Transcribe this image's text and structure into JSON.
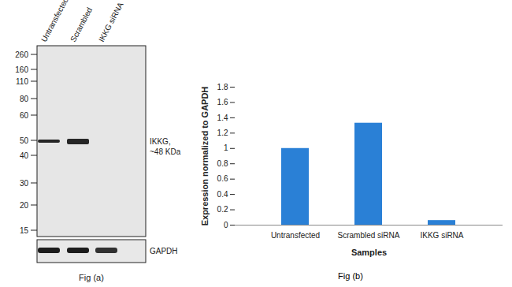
{
  "chart_data": {
    "type": "bar",
    "categories": [
      "Untransfected",
      "Scrambled siRNA",
      "IKKG siRNA"
    ],
    "values": [
      1.0,
      1.33,
      0.06
    ],
    "color": "#2a80d6",
    "ylim": [
      0,
      1.8
    ],
    "yticks": [
      0,
      0.2,
      0.4,
      0.6,
      0.8,
      1,
      1.2,
      1.4,
      1.6,
      1.8
    ],
    "x_label": "Samples",
    "y_label": "Expression normalized to GAPDH",
    "caption": "Fig (b)",
    "grid": false
  },
  "blot": {
    "lanes": [
      "Untransfected",
      "Scrambled",
      "IKKG siRNA"
    ],
    "markers": [
      260,
      160,
      110,
      80,
      60,
      50,
      40,
      30,
      20,
      15
    ],
    "target_label": [
      "IKKG,",
      "~48 KDa"
    ],
    "target_band_present": [
      true,
      true,
      false
    ],
    "loading_label": "GAPDH",
    "caption": "Fig (a)"
  }
}
